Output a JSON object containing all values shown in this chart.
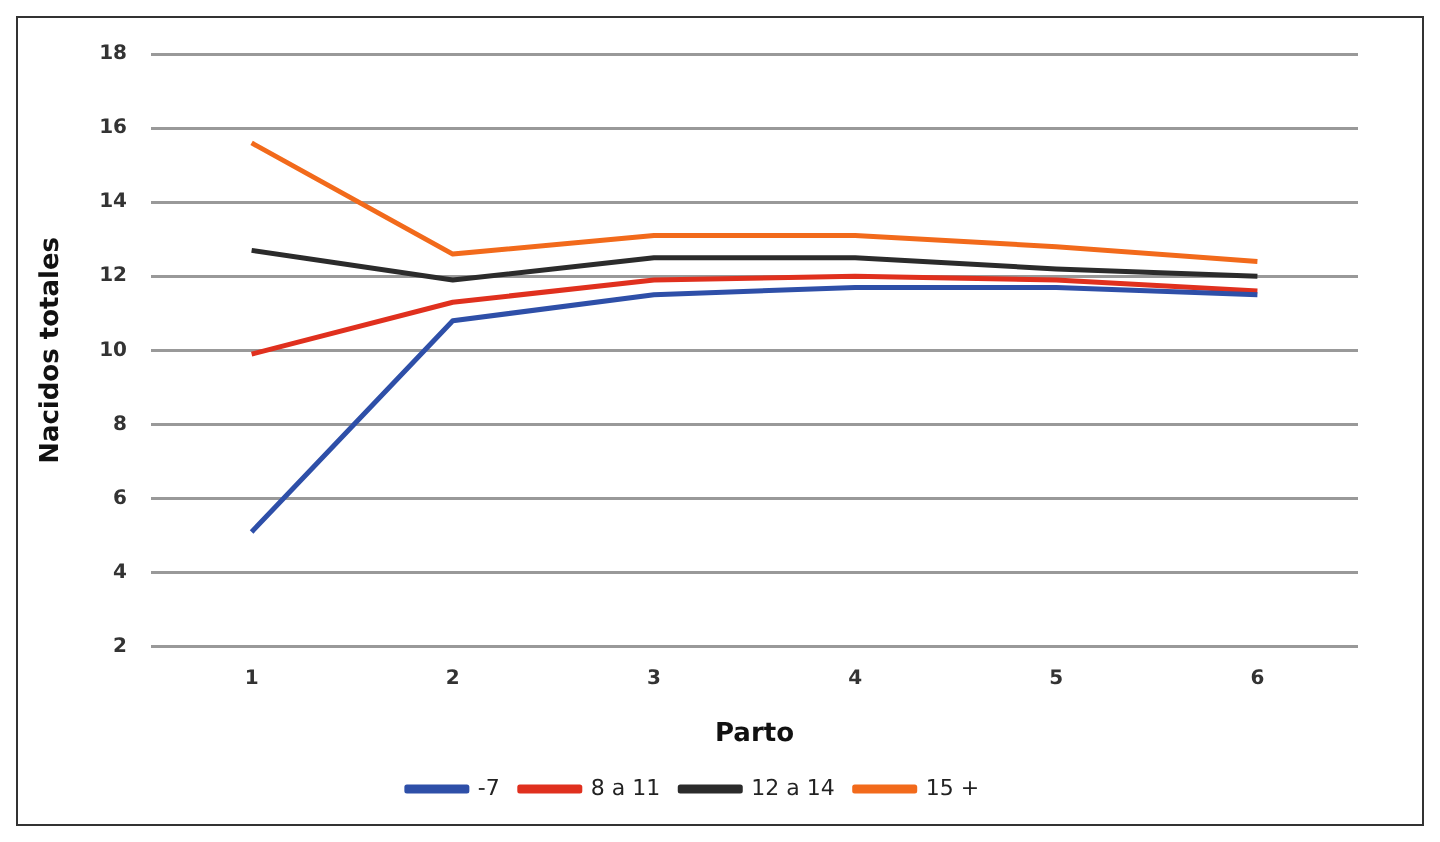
{
  "chart_data": {
    "type": "line",
    "xlabel": "Parto",
    "ylabel": "Nacidos totales",
    "categories": [
      "1",
      "2",
      "3",
      "4",
      "5",
      "6"
    ],
    "series": [
      {
        "name": "-7",
        "color": "#2e4fa8",
        "values": [
          5.1,
          10.8,
          11.5,
          11.7,
          11.7,
          11.5
        ]
      },
      {
        "name": "8 a 11",
        "color": "#e0301e",
        "values": [
          9.9,
          11.3,
          11.9,
          12.0,
          11.9,
          11.6
        ]
      },
      {
        "name": "12 a 14",
        "color": "#2b2b2b",
        "values": [
          12.7,
          11.9,
          12.5,
          12.5,
          12.2,
          12.0
        ]
      },
      {
        "name": "15 +",
        "color": "#f26a1b",
        "values": [
          15.6,
          12.6,
          13.1,
          13.1,
          12.8,
          12.4
        ]
      }
    ],
    "ylim": [
      2,
      18
    ],
    "yticks": [
      2,
      4,
      6,
      8,
      10,
      12,
      14,
      16,
      18
    ],
    "grid": "y",
    "legend": "bottom",
    "marker": "none",
    "line_style": "solid"
  }
}
